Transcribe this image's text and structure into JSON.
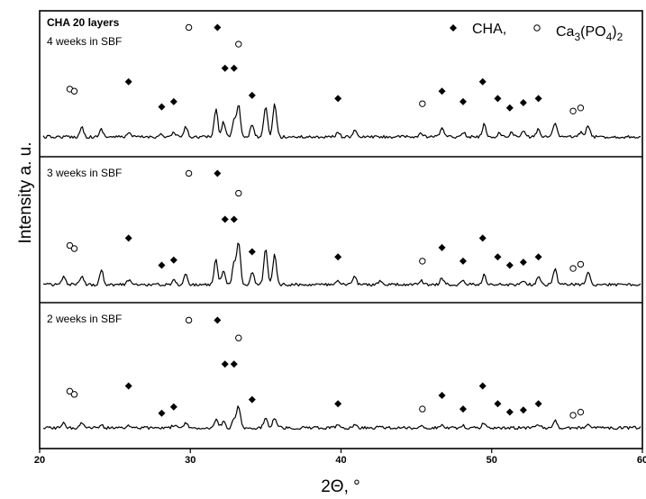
{
  "chart_data": {
    "type": "line",
    "title": "CHA 20 layers",
    "xlabel": "2Θ, °",
    "ylabel": "Intensity a. u.",
    "xlim": [
      20,
      60
    ],
    "xticks": [
      20,
      30,
      40,
      50,
      60
    ],
    "grid": false,
    "legend": {
      "placement": "top-right",
      "entries": [
        {
          "marker": "filled-diamond",
          "label": "CHA,"
        },
        {
          "marker": "open-circle",
          "label": "Ca3(PO4)2"
        }
      ]
    },
    "panels": [
      {
        "label": "4 weeks in SBF",
        "peaks": [
          {
            "x": 22.8,
            "h": 0.26
          },
          {
            "x": 24.1,
            "h": 0.2
          },
          {
            "x": 25.9,
            "h": 0.1
          },
          {
            "x": 28.0,
            "h": 0.07
          },
          {
            "x": 28.9,
            "h": 0.11
          },
          {
            "x": 29.7,
            "h": 0.26
          },
          {
            "x": 31.7,
            "h": 0.72
          },
          {
            "x": 32.2,
            "h": 0.4
          },
          {
            "x": 32.9,
            "h": 0.45
          },
          {
            "x": 33.2,
            "h": 0.85
          },
          {
            "x": 34.1,
            "h": 0.3
          },
          {
            "x": 35.0,
            "h": 0.78
          },
          {
            "x": 35.6,
            "h": 0.88
          },
          {
            "x": 39.8,
            "h": 0.12
          },
          {
            "x": 40.9,
            "h": 0.17
          },
          {
            "x": 45.3,
            "h": 0.09
          },
          {
            "x": 46.7,
            "h": 0.26
          },
          {
            "x": 48.1,
            "h": 0.14
          },
          {
            "x": 49.5,
            "h": 0.33
          },
          {
            "x": 50.5,
            "h": 0.1
          },
          {
            "x": 51.3,
            "h": 0.12
          },
          {
            "x": 52.1,
            "h": 0.16
          },
          {
            "x": 53.1,
            "h": 0.22
          },
          {
            "x": 54.2,
            "h": 0.4
          },
          {
            "x": 55.9,
            "h": 0.13
          },
          {
            "x": 56.4,
            "h": 0.3
          }
        ],
        "cha_markers": [
          {
            "x": 31.8,
            "y": 0.97
          },
          {
            "x": 32.3,
            "y": 0.58
          },
          {
            "x": 32.9,
            "y": 0.58
          },
          {
            "x": 25.9,
            "y": 0.45
          },
          {
            "x": 49.4,
            "y": 0.45
          },
          {
            "x": 46.7,
            "y": 0.36
          },
          {
            "x": 34.1,
            "y": 0.32
          },
          {
            "x": 39.8,
            "y": 0.29
          },
          {
            "x": 50.4,
            "y": 0.29
          },
          {
            "x": 53.1,
            "y": 0.29
          },
          {
            "x": 28.9,
            "y": 0.26
          },
          {
            "x": 48.1,
            "y": 0.26
          },
          {
            "x": 52.1,
            "y": 0.25
          },
          {
            "x": 28.1,
            "y": 0.21
          },
          {
            "x": 51.2,
            "y": 0.2
          }
        ],
        "ca3po42_markers": [
          {
            "x": 29.9,
            "y": 0.97
          },
          {
            "x": 33.2,
            "y": 0.81
          },
          {
            "x": 22.0,
            "y": 0.38
          },
          {
            "x": 22.3,
            "y": 0.36
          },
          {
            "x": 45.4,
            "y": 0.24
          },
          {
            "x": 55.9,
            "y": 0.2
          },
          {
            "x": 55.4,
            "y": 0.17
          }
        ]
      },
      {
        "label": "3 weeks in SBF",
        "peaks": [
          {
            "x": 21.6,
            "h": 0.18
          },
          {
            "x": 22.8,
            "h": 0.18
          },
          {
            "x": 24.1,
            "h": 0.36
          },
          {
            "x": 25.9,
            "h": 0.12
          },
          {
            "x": 28.9,
            "h": 0.1
          },
          {
            "x": 29.7,
            "h": 0.26
          },
          {
            "x": 31.7,
            "h": 0.6
          },
          {
            "x": 32.2,
            "h": 0.35
          },
          {
            "x": 32.9,
            "h": 0.5
          },
          {
            "x": 33.2,
            "h": 1.05
          },
          {
            "x": 34.1,
            "h": 0.32
          },
          {
            "x": 35.0,
            "h": 0.86
          },
          {
            "x": 35.6,
            "h": 0.74
          },
          {
            "x": 39.8,
            "h": 0.07
          },
          {
            "x": 40.9,
            "h": 0.2
          },
          {
            "x": 42.6,
            "h": 0.08
          },
          {
            "x": 45.3,
            "h": 0.1
          },
          {
            "x": 46.7,
            "h": 0.16
          },
          {
            "x": 48.1,
            "h": 0.1
          },
          {
            "x": 49.5,
            "h": 0.24
          },
          {
            "x": 52.1,
            "h": 0.1
          },
          {
            "x": 53.1,
            "h": 0.2
          },
          {
            "x": 54.2,
            "h": 0.4
          },
          {
            "x": 56.4,
            "h": 0.3
          }
        ],
        "cha_markers": [
          {
            "x": 31.8,
            "y": 0.97
          },
          {
            "x": 32.3,
            "y": 0.53
          },
          {
            "x": 32.9,
            "y": 0.53
          },
          {
            "x": 25.9,
            "y": 0.35
          },
          {
            "x": 49.4,
            "y": 0.35
          },
          {
            "x": 46.7,
            "y": 0.26
          },
          {
            "x": 34.1,
            "y": 0.22
          },
          {
            "x": 39.8,
            "y": 0.17
          },
          {
            "x": 50.4,
            "y": 0.17
          },
          {
            "x": 53.1,
            "y": 0.17
          },
          {
            "x": 28.9,
            "y": 0.14
          },
          {
            "x": 48.1,
            "y": 0.13
          },
          {
            "x": 52.1,
            "y": 0.12
          },
          {
            "x": 28.1,
            "y": 0.09
          },
          {
            "x": 51.2,
            "y": 0.09
          }
        ],
        "ca3po42_markers": [
          {
            "x": 29.9,
            "y": 0.97
          },
          {
            "x": 33.2,
            "y": 0.78
          },
          {
            "x": 22.0,
            "y": 0.28
          },
          {
            "x": 22.3,
            "y": 0.25
          },
          {
            "x": 45.4,
            "y": 0.13
          },
          {
            "x": 55.9,
            "y": 0.1
          },
          {
            "x": 55.4,
            "y": 0.06
          }
        ]
      },
      {
        "label": "2 weeks in SBF",
        "peaks": [
          {
            "x": 21.6,
            "h": 0.1
          },
          {
            "x": 22.8,
            "h": 0.12
          },
          {
            "x": 24.1,
            "h": 0.06
          },
          {
            "x": 25.9,
            "h": 0.06
          },
          {
            "x": 28.9,
            "h": 0.06
          },
          {
            "x": 29.7,
            "h": 0.1
          },
          {
            "x": 31.7,
            "h": 0.2
          },
          {
            "x": 32.2,
            "h": 0.15
          },
          {
            "x": 32.9,
            "h": 0.18
          },
          {
            "x": 33.2,
            "h": 0.5
          },
          {
            "x": 35.0,
            "h": 0.26
          },
          {
            "x": 35.6,
            "h": 0.24
          },
          {
            "x": 39.8,
            "h": 0.05
          },
          {
            "x": 40.9,
            "h": 0.07
          },
          {
            "x": 42.6,
            "h": 0.05
          },
          {
            "x": 45.3,
            "h": 0.05
          },
          {
            "x": 46.7,
            "h": 0.08
          },
          {
            "x": 48.1,
            "h": 0.05
          },
          {
            "x": 49.5,
            "h": 0.12
          },
          {
            "x": 53.1,
            "h": 0.07
          },
          {
            "x": 54.2,
            "h": 0.16
          },
          {
            "x": 56.4,
            "h": 0.1
          }
        ],
        "cha_markers": [
          {
            "x": 31.8,
            "y": 0.97
          },
          {
            "x": 32.3,
            "y": 0.55
          },
          {
            "x": 32.9,
            "y": 0.55
          },
          {
            "x": 25.9,
            "y": 0.34
          },
          {
            "x": 49.4,
            "y": 0.34
          },
          {
            "x": 46.7,
            "y": 0.25
          },
          {
            "x": 34.1,
            "y": 0.21
          },
          {
            "x": 39.8,
            "y": 0.17
          },
          {
            "x": 50.4,
            "y": 0.17
          },
          {
            "x": 53.1,
            "y": 0.17
          },
          {
            "x": 28.9,
            "y": 0.14
          },
          {
            "x": 48.1,
            "y": 0.12
          },
          {
            "x": 52.1,
            "y": 0.11
          },
          {
            "x": 28.1,
            "y": 0.08
          },
          {
            "x": 51.2,
            "y": 0.09
          }
        ],
        "ca3po42_markers": [
          {
            "x": 29.9,
            "y": 0.97
          },
          {
            "x": 33.2,
            "y": 0.8
          },
          {
            "x": 22.0,
            "y": 0.29
          },
          {
            "x": 22.3,
            "y": 0.26
          },
          {
            "x": 45.4,
            "y": 0.12
          },
          {
            "x": 55.9,
            "y": 0.09
          },
          {
            "x": 55.4,
            "y": 0.06
          }
        ]
      }
    ]
  }
}
